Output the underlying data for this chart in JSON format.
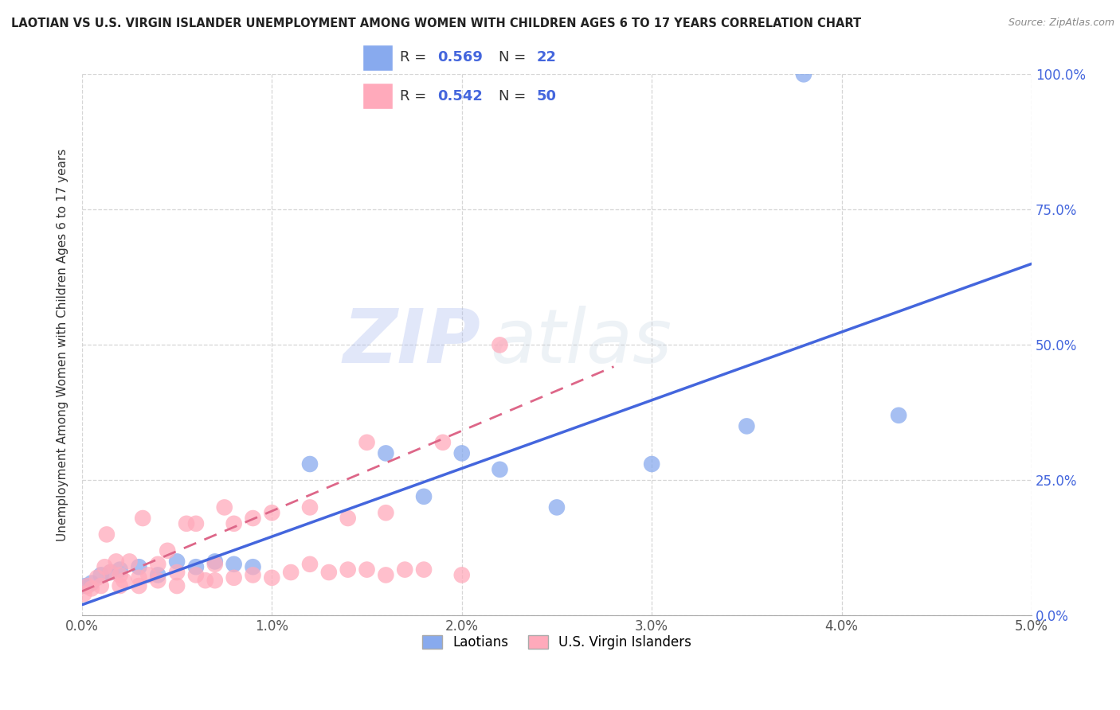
{
  "title": "LAOTIAN VS U.S. VIRGIN ISLANDER UNEMPLOYMENT AMONG WOMEN WITH CHILDREN AGES 6 TO 17 YEARS CORRELATION CHART",
  "source": "Source: ZipAtlas.com",
  "ylabel": "Unemployment Among Women with Children Ages 6 to 17 years",
  "xlim": [
    0.0,
    0.05
  ],
  "ylim": [
    0.0,
    1.0
  ],
  "xticks": [
    0.0,
    0.01,
    0.02,
    0.03,
    0.04,
    0.05
  ],
  "yticks": [
    0.0,
    0.25,
    0.5,
    0.75,
    1.0
  ],
  "xtick_labels": [
    "0.0%",
    "1.0%",
    "2.0%",
    "3.0%",
    "4.0%",
    "5.0%"
  ],
  "ytick_labels": [
    "0.0%",
    "25.0%",
    "50.0%",
    "75.0%",
    "100.0%"
  ],
  "blue_color": "#88aaff",
  "pink_color": "#ff99bb",
  "blue_marker_color": "#88aaee",
  "pink_marker_color": "#ffaabb",
  "blue_line_color": "#4466dd",
  "pink_line_color": "#dd6688",
  "legend_R_blue": "0.569",
  "legend_N_blue": "22",
  "legend_R_pink": "0.542",
  "legend_N_pink": "50",
  "legend_label_blue": "Laotians",
  "legend_label_pink": "U.S. Virgin Islanders",
  "watermark_zip": "ZIP",
  "watermark_atlas": "atlas",
  "blue_scatter_x": [
    0.0002,
    0.0005,
    0.001,
    0.0015,
    0.002,
    0.003,
    0.004,
    0.005,
    0.006,
    0.007,
    0.008,
    0.009,
    0.012,
    0.016,
    0.018,
    0.02,
    0.022,
    0.025,
    0.03,
    0.035,
    0.043,
    0.038
  ],
  "blue_scatter_y": [
    0.055,
    0.06,
    0.075,
    0.08,
    0.085,
    0.09,
    0.075,
    0.1,
    0.09,
    0.1,
    0.095,
    0.09,
    0.28,
    0.3,
    0.22,
    0.3,
    0.27,
    0.2,
    0.28,
    0.35,
    0.37,
    1.0
  ],
  "pink_scatter_x": [
    0.0001,
    0.0003,
    0.0005,
    0.0008,
    0.001,
    0.0012,
    0.0013,
    0.0015,
    0.0018,
    0.002,
    0.002,
    0.0022,
    0.0025,
    0.003,
    0.003,
    0.0032,
    0.0035,
    0.004,
    0.004,
    0.0045,
    0.005,
    0.005,
    0.0055,
    0.006,
    0.006,
    0.0065,
    0.007,
    0.007,
    0.0075,
    0.008,
    0.008,
    0.009,
    0.009,
    0.01,
    0.01,
    0.011,
    0.012,
    0.012,
    0.013,
    0.014,
    0.014,
    0.015,
    0.015,
    0.016,
    0.016,
    0.017,
    0.018,
    0.019,
    0.02,
    0.022
  ],
  "pink_scatter_y": [
    0.04,
    0.055,
    0.05,
    0.07,
    0.055,
    0.09,
    0.15,
    0.08,
    0.1,
    0.055,
    0.075,
    0.065,
    0.1,
    0.055,
    0.07,
    0.18,
    0.075,
    0.065,
    0.095,
    0.12,
    0.055,
    0.08,
    0.17,
    0.075,
    0.17,
    0.065,
    0.065,
    0.095,
    0.2,
    0.07,
    0.17,
    0.075,
    0.18,
    0.07,
    0.19,
    0.08,
    0.095,
    0.2,
    0.08,
    0.085,
    0.18,
    0.085,
    0.32,
    0.075,
    0.19,
    0.085,
    0.085,
    0.32,
    0.075,
    0.5
  ],
  "blue_line_x": [
    0.0,
    0.05
  ],
  "blue_line_y": [
    0.02,
    0.65
  ],
  "pink_line_x": [
    0.0,
    0.028
  ],
  "pink_line_y": [
    0.045,
    0.46
  ],
  "background_color": "#ffffff",
  "grid_color": "#cccccc"
}
